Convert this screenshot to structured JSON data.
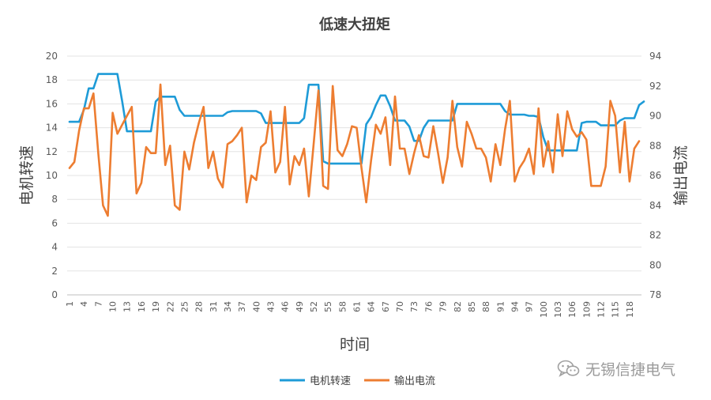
{
  "chart_data": {
    "type": "line",
    "title": "低速大扭矩",
    "xlabel": "时间",
    "ylabel_left": "电机转速",
    "ylabel_right": "输出电流",
    "ylim_left": [
      0,
      20
    ],
    "yticks_left": [
      0,
      2,
      4,
      6,
      8,
      10,
      12,
      14,
      16,
      18,
      20
    ],
    "ylim_right": [
      78,
      94
    ],
    "yticks_right": [
      78,
      80,
      82,
      84,
      86,
      88,
      90,
      92,
      94
    ],
    "x_count": 120,
    "xtick_labels": [
      "1",
      "4",
      "7",
      "10",
      "13",
      "16",
      "19",
      "22",
      "25",
      "28",
      "31",
      "34",
      "37",
      "40",
      "43",
      "46",
      "49",
      "52",
      "55",
      "58",
      "61",
      "64",
      "67",
      "70",
      "73",
      "76",
      "79",
      "82",
      "85",
      "88",
      "91",
      "94",
      "97",
      "100",
      "103",
      "106",
      "109",
      "112",
      "115",
      "118"
    ],
    "legend_position": "bottom",
    "grid": "horizontal",
    "series": [
      {
        "name": "电机转速",
        "axis": "left",
        "color": "#1E9BD7",
        "values": [
          14.5,
          14.5,
          14.5,
          15.5,
          17.3,
          17.3,
          18.5,
          18.5,
          18.5,
          18.5,
          18.5,
          16.2,
          13.7,
          13.7,
          13.7,
          13.7,
          13.7,
          13.7,
          16.2,
          16.6,
          16.6,
          16.6,
          16.6,
          15.5,
          15.0,
          15.0,
          15.0,
          15.0,
          15.0,
          15.0,
          15.0,
          15.0,
          15.0,
          15.3,
          15.4,
          15.4,
          15.4,
          15.4,
          15.4,
          15.4,
          15.2,
          14.4,
          14.4,
          14.4,
          14.4,
          14.4,
          14.4,
          14.4,
          14.4,
          14.8,
          17.6,
          17.6,
          17.6,
          11.2,
          11.0,
          11.0,
          11.0,
          11.0,
          11.0,
          11.0,
          11.0,
          11.0,
          14.3,
          14.9,
          15.9,
          16.7,
          16.7,
          15.8,
          14.6,
          14.6,
          14.6,
          14.1,
          12.9,
          12.9,
          14.0,
          14.6,
          14.6,
          14.6,
          14.6,
          14.6,
          14.6,
          16.0,
          16.0,
          16.0,
          16.0,
          16.0,
          16.0,
          16.0,
          16.0,
          16.0,
          16.0,
          15.4,
          15.1,
          15.1,
          15.1,
          15.1,
          15.0,
          15.0,
          14.9,
          13.2,
          12.1,
          12.1,
          12.1,
          12.1,
          12.1,
          12.1,
          12.1,
          14.4,
          14.5,
          14.5,
          14.5,
          14.2,
          14.2,
          14.2,
          14.2,
          14.6,
          14.8,
          14.8,
          14.8,
          15.9,
          16.2
        ]
      },
      {
        "name": "输出电流",
        "axis": "right",
        "color": "#ED7D31",
        "values": [
          86.5,
          86.9,
          89.0,
          90.5,
          90.5,
          91.5,
          87.5,
          84.0,
          83.3,
          90.2,
          88.8,
          89.4,
          90.0,
          90.6,
          84.8,
          85.5,
          87.9,
          87.5,
          87.5,
          92.1,
          86.7,
          88.0,
          84.0,
          83.7,
          87.6,
          86.4,
          88.2,
          89.5,
          90.6,
          86.5,
          87.6,
          85.8,
          85.2,
          88.1,
          88.3,
          88.7,
          89.2,
          84.2,
          86.0,
          85.7,
          87.9,
          88.2,
          90.3,
          86.2,
          86.9,
          90.6,
          85.4,
          87.3,
          86.7,
          87.8,
          84.6,
          88.1,
          91.7,
          85.3,
          85.1,
          92.0,
          87.7,
          87.3,
          88.1,
          89.3,
          89.2,
          86.5,
          84.2,
          87.0,
          89.4,
          88.8,
          89.9,
          86.7,
          91.3,
          87.8,
          87.8,
          86.1,
          87.5,
          88.7,
          87.3,
          87.2,
          89.3,
          87.5,
          85.5,
          87.2,
          91.0,
          87.9,
          86.6,
          89.6,
          88.8,
          87.8,
          87.8,
          87.2,
          85.6,
          88.1,
          86.7,
          89.1,
          91.0,
          85.6,
          86.5,
          87.0,
          87.8,
          86.1,
          90.5,
          86.6,
          88.3,
          86.2,
          90.1,
          87.3,
          90.3,
          89.1,
          88.6,
          88.9,
          88.4,
          85.3,
          85.3,
          85.3,
          86.6,
          91.0,
          90.0,
          86.2,
          89.6,
          85.6,
          87.8,
          88.3
        ]
      }
    ]
  },
  "watermark": {
    "text": "无锡信捷电气",
    "icon": "wechat-logo-icon"
  }
}
